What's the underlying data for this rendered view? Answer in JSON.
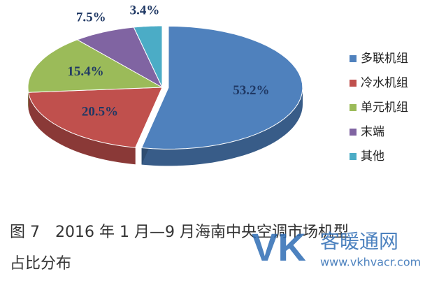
{
  "chart_data": {
    "type": "pie",
    "categories": [
      "多联机组",
      "冷水机组",
      "单元机组",
      "末端",
      "其他"
    ],
    "values": [
      53.2,
      20.5,
      15.4,
      7.5,
      3.4
    ],
    "value_labels": [
      "53.2%",
      "20.5%",
      "15.4%",
      "7.5%",
      "3.4%"
    ],
    "colors": [
      "#4f81bd",
      "#c0504d",
      "#9bbb59",
      "#8064a2",
      "#4bacc6"
    ],
    "legend": "right"
  },
  "caption": [
    "图 7　2016 年 1 月—9 月海南中央空调市场机型",
    "占比分布"
  ],
  "watermark": {
    "logo": "VK",
    "name": "客暖通网",
    "url": "www.vkhvacr.com"
  }
}
